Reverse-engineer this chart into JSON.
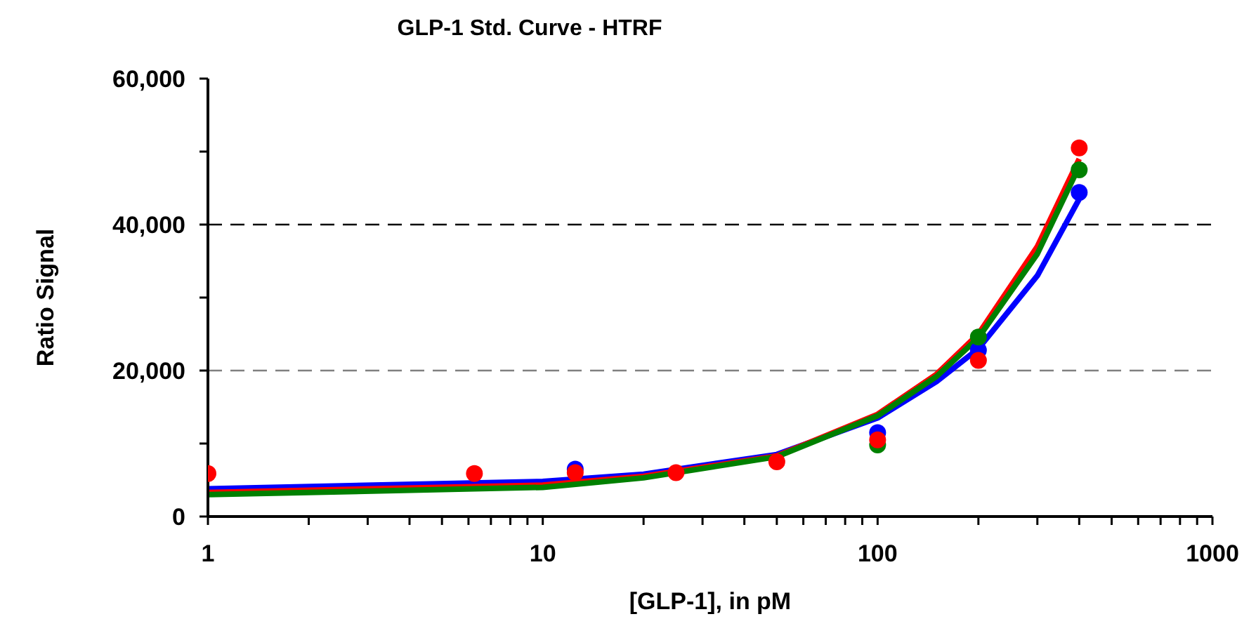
{
  "chart_data": {
    "type": "scatter",
    "title": "GLP-1 Std. Curve - HTRF",
    "xlabel": "[GLP-1], in pM",
    "ylabel": "Ratio Signal",
    "log": "x",
    "ref_lines": [
      {
        "axis": "y",
        "value": 20000,
        "label": null,
        "color": "#808080",
        "line_style": "dashed"
      },
      {
        "axis": "y",
        "value": 40000,
        "label": null,
        "color": "#000000",
        "line_style": "dashed"
      }
    ],
    "xlim": [
      1,
      1000
    ],
    "xticks": [
      1,
      {
        "value": 2,
        "label": null
      },
      {
        "value": 3,
        "label": null
      },
      {
        "value": 4,
        "label": null
      },
      {
        "value": 5,
        "label": null
      },
      {
        "value": 6,
        "label": null
      },
      {
        "value": 7,
        "label": null
      },
      {
        "value": 8,
        "label": null
      },
      {
        "value": 9,
        "label": null
      },
      10,
      {
        "value": 20,
        "label": null
      },
      {
        "value": 30,
        "label": null
      },
      {
        "value": 40,
        "label": null
      },
      {
        "value": 50,
        "label": null
      },
      {
        "value": 60,
        "label": null
      },
      {
        "value": 70,
        "label": null
      },
      {
        "value": 80,
        "label": null
      },
      {
        "value": 90,
        "label": null
      },
      100,
      {
        "value": 200,
        "label": null
      },
      {
        "value": 300,
        "label": null
      },
      {
        "value": 400,
        "label": null
      },
      {
        "value": 500,
        "label": null
      },
      {
        "value": 600,
        "label": null
      },
      {
        "value": 700,
        "label": null
      },
      {
        "value": 800,
        "label": null
      },
      {
        "value": 900,
        "label": null
      },
      1000
    ],
    "ylim": [
      0,
      60000
    ],
    "yticks": [
      0,
      {
        "value": 10000,
        "label": null
      },
      {
        "value": 20000,
        "label": "20,000"
      },
      {
        "value": 30000,
        "label": null
      },
      {
        "value": 40000,
        "label": "40,000"
      },
      {
        "value": 50000,
        "label": null
      },
      {
        "value": 60000,
        "label": "60,000"
      }
    ],
    "x": [
      1,
      6.25,
      12.5,
      25,
      50,
      100,
      200,
      400
    ],
    "series": [
      {
        "type": "line",
        "color": "#0000ff",
        "marker": "none",
        "line_style": "solid",
        "x": [
          1,
          10,
          20,
          50,
          100,
          150,
          200,
          300,
          400
        ],
        "values": [
          3800,
          4800,
          5800,
          8500,
          13500,
          18500,
          23000,
          33000,
          43500
        ]
      },
      {
        "type": "line",
        "color": "#ff0000",
        "marker": "none",
        "line_style": "solid",
        "x": [
          1,
          10,
          20,
          50,
          100,
          150,
          200,
          300,
          400
        ],
        "values": [
          3300,
          4300,
          5500,
          8300,
          14000,
          19500,
          25000,
          37000,
          49000
        ]
      },
      {
        "type": "line",
        "color": "#008000",
        "marker": "none",
        "line_style": "solid",
        "x": [
          1,
          10,
          20,
          50,
          100,
          150,
          200,
          300,
          400
        ],
        "values": [
          3000,
          4000,
          5300,
          8200,
          13800,
          19200,
          24500,
          36000,
          48000
        ]
      },
      {
        "color": "#0000ff",
        "marker": "circle",
        "values": [
          null,
          null,
          6500,
          null,
          null,
          11500,
          22800,
          44400
        ]
      },
      {
        "color": "#008000",
        "marker": "circle",
        "values": [
          null,
          null,
          null,
          null,
          null,
          9800,
          24600,
          47500
        ]
      },
      {
        "color": "#ff0000",
        "marker": "circle",
        "values": [
          5900,
          5900,
          6000,
          6000,
          7500,
          10500,
          21400,
          50500
        ]
      }
    ]
  }
}
